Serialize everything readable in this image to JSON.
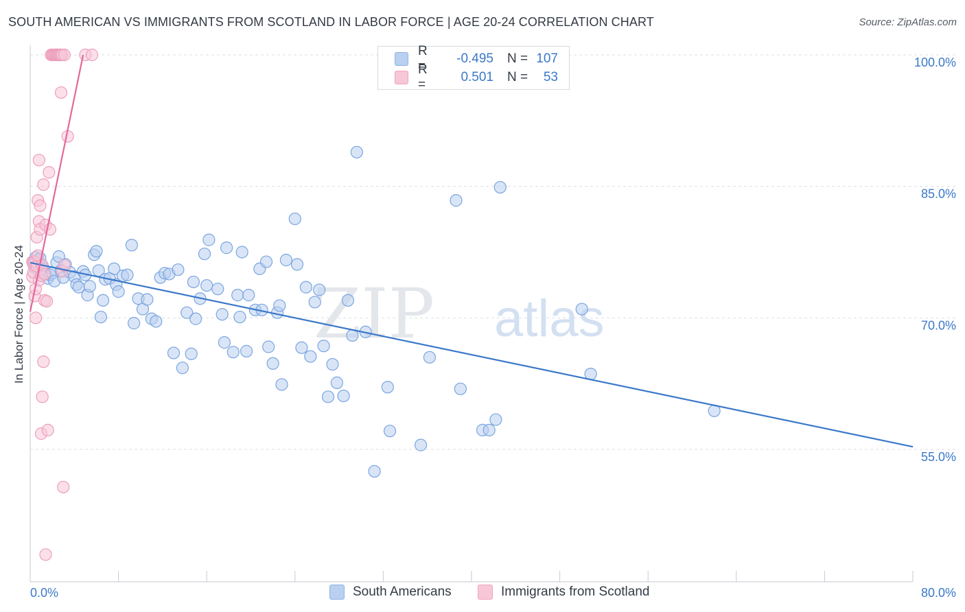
{
  "title": "SOUTH AMERICAN VS IMMIGRANTS FROM SCOTLAND IN LABOR FORCE | AGE 20-24 CORRELATION CHART",
  "source": "Source: ZipAtlas.com",
  "watermark": {
    "zip": "ZIP",
    "atlas": "atlas"
  },
  "legend": {
    "series1": {
      "r_label": "R =",
      "r_value": "-0.495",
      "n_label": "N =",
      "n_value": "107"
    },
    "series2": {
      "r_label": "R =",
      "r_value": "0.501",
      "n_label": "N =",
      "n_value": "53"
    }
  },
  "chart_data": {
    "type": "scatter",
    "ylabel": "In Labor Force | Age 20-24",
    "xlim": [
      0,
      80
    ],
    "ylim": [
      40,
      101
    ],
    "x_tick_labels": [
      "0.0%",
      "80.0%"
    ],
    "y_ticks": [
      {
        "value": 100,
        "label": "100.0%"
      },
      {
        "value": 85,
        "label": "85.0%"
      },
      {
        "value": 70,
        "label": "70.0%"
      },
      {
        "value": 55,
        "label": "55.0%"
      }
    ],
    "colors": {
      "south_americans": "#3a78c9",
      "scotland": "#e3689a"
    },
    "series": [
      {
        "name": "South Americans",
        "trend": {
          "x": [
            0,
            80
          ],
          "y": [
            76.3,
            55.3
          ]
        },
        "points": [
          [
            0.3,
            76.4
          ],
          [
            0.4,
            75.8
          ],
          [
            0.5,
            76.9
          ],
          [
            0.6,
            76.2
          ],
          [
            0.7,
            76.6
          ],
          [
            0.8,
            75.2
          ],
          [
            0.9,
            76.8
          ],
          [
            1.0,
            74.8
          ],
          [
            1.1,
            76.0
          ],
          [
            1.2,
            75.6
          ],
          [
            1.4,
            75.0
          ],
          [
            1.6,
            74.5
          ],
          [
            1.8,
            74.9
          ],
          [
            2.0,
            75.1
          ],
          [
            2.2,
            74.2
          ],
          [
            2.4,
            76.3
          ],
          [
            2.6,
            77.0
          ],
          [
            2.8,
            75.4
          ],
          [
            3.0,
            74.6
          ],
          [
            3.2,
            76.1
          ],
          [
            3.6,
            75.2
          ],
          [
            4.0,
            74.7
          ],
          [
            4.2,
            73.8
          ],
          [
            4.4,
            73.5
          ],
          [
            4.8,
            75.3
          ],
          [
            5.0,
            74.9
          ],
          [
            5.2,
            72.6
          ],
          [
            5.4,
            73.6
          ],
          [
            5.8,
            77.2
          ],
          [
            6.0,
            77.6
          ],
          [
            6.2,
            75.4
          ],
          [
            6.4,
            70.1
          ],
          [
            6.6,
            72.0
          ],
          [
            6.8,
            74.4
          ],
          [
            7.2,
            74.5
          ],
          [
            7.6,
            75.6
          ],
          [
            7.8,
            73.8
          ],
          [
            8.0,
            73.0
          ],
          [
            8.4,
            74.8
          ],
          [
            8.8,
            74.9
          ],
          [
            9.2,
            78.3
          ],
          [
            9.4,
            69.4
          ],
          [
            9.8,
            72.2
          ],
          [
            10.2,
            71.0
          ],
          [
            10.6,
            72.1
          ],
          [
            11.0,
            69.9
          ],
          [
            11.4,
            69.6
          ],
          [
            11.8,
            74.6
          ],
          [
            12.2,
            75.1
          ],
          [
            12.6,
            75.0
          ],
          [
            13.0,
            66.0
          ],
          [
            13.4,
            75.5
          ],
          [
            13.8,
            64.3
          ],
          [
            14.2,
            70.6
          ],
          [
            14.6,
            65.9
          ],
          [
            14.8,
            74.1
          ],
          [
            15.0,
            69.9
          ],
          [
            15.4,
            72.2
          ],
          [
            15.8,
            77.3
          ],
          [
            16.0,
            73.7
          ],
          [
            16.2,
            78.9
          ],
          [
            17.0,
            73.3
          ],
          [
            17.4,
            70.4
          ],
          [
            17.6,
            67.2
          ],
          [
            17.8,
            78.0
          ],
          [
            18.4,
            66.1
          ],
          [
            18.8,
            72.6
          ],
          [
            19.0,
            70.1
          ],
          [
            19.2,
            77.5
          ],
          [
            19.6,
            66.2
          ],
          [
            19.8,
            72.6
          ],
          [
            20.4,
            70.9
          ],
          [
            20.8,
            75.6
          ],
          [
            21.0,
            70.9
          ],
          [
            21.4,
            76.4
          ],
          [
            21.6,
            66.7
          ],
          [
            22.0,
            64.8
          ],
          [
            22.4,
            70.6
          ],
          [
            22.6,
            71.4
          ],
          [
            22.8,
            62.4
          ],
          [
            23.2,
            76.6
          ],
          [
            24.0,
            81.3
          ],
          [
            24.2,
            76.1
          ],
          [
            24.6,
            66.6
          ],
          [
            25.0,
            73.5
          ],
          [
            25.4,
            65.6
          ],
          [
            25.8,
            71.8
          ],
          [
            26.2,
            73.2
          ],
          [
            26.6,
            66.8
          ],
          [
            27.0,
            61.0
          ],
          [
            27.4,
            64.7
          ],
          [
            27.8,
            62.6
          ],
          [
            28.4,
            61.1
          ],
          [
            28.8,
            72.0
          ],
          [
            29.2,
            68.0
          ],
          [
            29.6,
            88.9
          ],
          [
            30.4,
            68.4
          ],
          [
            31.2,
            52.5
          ],
          [
            32.4,
            62.1
          ],
          [
            32.6,
            57.1
          ],
          [
            35.4,
            55.5
          ],
          [
            36.2,
            65.5
          ],
          [
            38.6,
            83.4
          ],
          [
            39.0,
            61.9
          ],
          [
            41.0,
            57.2
          ],
          [
            41.6,
            57.2
          ],
          [
            42.2,
            58.4
          ],
          [
            42.6,
            84.9
          ],
          [
            50.0,
            71.0
          ],
          [
            50.8,
            63.6
          ],
          [
            62.0,
            59.4
          ]
        ]
      },
      {
        "name": "Immigrants from Scotland",
        "trend": {
          "x": [
            0,
            4.8
          ],
          "y": [
            70.7,
            100.0
          ]
        },
        "points": [
          [
            0.2,
            76.4
          ],
          [
            0.2,
            74.7
          ],
          [
            0.3,
            76.1
          ],
          [
            0.3,
            75.2
          ],
          [
            0.4,
            72.5
          ],
          [
            0.4,
            76.4
          ],
          [
            0.5,
            70.0
          ],
          [
            0.5,
            73.3
          ],
          [
            0.6,
            79.2
          ],
          [
            0.6,
            75.9
          ],
          [
            0.7,
            83.4
          ],
          [
            0.7,
            77.1
          ],
          [
            0.8,
            88.0
          ],
          [
            0.8,
            81.0
          ],
          [
            0.8,
            74.3
          ],
          [
            0.9,
            82.8
          ],
          [
            0.9,
            80.1
          ],
          [
            1.0,
            56.8
          ],
          [
            1.0,
            74.8
          ],
          [
            1.1,
            61.0
          ],
          [
            1.1,
            76.0
          ],
          [
            1.2,
            65.0
          ],
          [
            1.2,
            85.2
          ],
          [
            1.3,
            72.0
          ],
          [
            1.3,
            75.0
          ],
          [
            1.4,
            43.0
          ],
          [
            1.4,
            80.6
          ],
          [
            1.5,
            71.9
          ],
          [
            1.6,
            57.2
          ],
          [
            1.7,
            86.6
          ],
          [
            1.8,
            80.1
          ],
          [
            1.9,
            100.0
          ],
          [
            2.0,
            100.0
          ],
          [
            2.1,
            100.0
          ],
          [
            2.2,
            100.0
          ],
          [
            2.3,
            100.0
          ],
          [
            2.4,
            100.0
          ],
          [
            2.4,
            100.0
          ],
          [
            2.5,
            100.0
          ],
          [
            2.5,
            100.0
          ],
          [
            2.6,
            100.0
          ],
          [
            2.7,
            100.0
          ],
          [
            2.7,
            100.0
          ],
          [
            2.8,
            100.0
          ],
          [
            2.8,
            95.7
          ],
          [
            2.9,
            100.0
          ],
          [
            2.9,
            75.3
          ],
          [
            3.0,
            50.7
          ],
          [
            3.1,
            76.0
          ],
          [
            3.1,
            100.0
          ],
          [
            3.4,
            90.7
          ],
          [
            5.0,
            100.0
          ],
          [
            5.6,
            100.0
          ]
        ]
      }
    ]
  }
}
